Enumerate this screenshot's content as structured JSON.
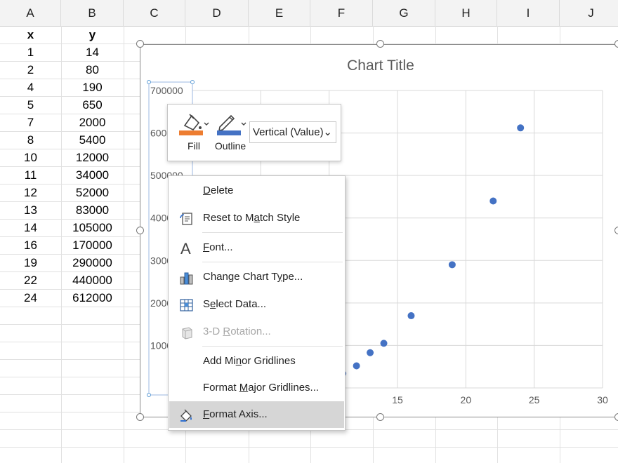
{
  "columns": [
    "A",
    "B",
    "C",
    "D",
    "E",
    "F",
    "G",
    "H",
    "I",
    "J"
  ],
  "table": {
    "headers": [
      "x",
      "y"
    ],
    "rows": [
      [
        "1",
        "14"
      ],
      [
        "2",
        "80"
      ],
      [
        "4",
        "190"
      ],
      [
        "5",
        "650"
      ],
      [
        "7",
        "2000"
      ],
      [
        "8",
        "5400"
      ],
      [
        "10",
        "12000"
      ],
      [
        "11",
        "34000"
      ],
      [
        "12",
        "52000"
      ],
      [
        "13",
        "83000"
      ],
      [
        "14",
        "105000"
      ],
      [
        "16",
        "170000"
      ],
      [
        "19",
        "290000"
      ],
      [
        "22",
        "440000"
      ],
      [
        "24",
        "612000"
      ]
    ]
  },
  "chart_data": {
    "type": "scatter",
    "title": "Chart Title",
    "x": [
      1,
      2,
      4,
      5,
      7,
      8,
      10,
      11,
      12,
      13,
      14,
      16,
      19,
      22,
      24
    ],
    "y": [
      14,
      80,
      190,
      650,
      2000,
      5400,
      12000,
      34000,
      52000,
      83000,
      105000,
      170000,
      290000,
      440000,
      612000
    ],
    "xlim": [
      0,
      30
    ],
    "ylim": [
      0,
      700000
    ],
    "x_ticks": [
      "15",
      "20",
      "25",
      "30"
    ],
    "y_ticks": [
      "700000",
      "600000",
      "500000",
      "400000",
      "300000",
      "200000",
      "100000"
    ],
    "grid": true,
    "marker_color": "#4472c4"
  },
  "mini_toolbar": {
    "fill_label": "Fill",
    "outline_label": "Outline",
    "element_selector": "Vertical (Value)",
    "fill_color": "#ed7d31",
    "outline_color": "#4472c4"
  },
  "context_menu": {
    "items": [
      {
        "pre": "",
        "acc": "D",
        "post": "elete",
        "icon": ""
      },
      {
        "pre": "Reset to M",
        "acc": "a",
        "post": "tch Style",
        "icon": "reset-style-icon"
      },
      {
        "pre": "",
        "acc": "F",
        "post": "ont...",
        "icon": "font-icon"
      },
      {
        "pre": "Change Chart T",
        "acc": "y",
        "post": "pe...",
        "icon": "chart-type-icon"
      },
      {
        "pre": "S",
        "acc": "e",
        "post": "lect Data...",
        "icon": "select-data-icon"
      },
      {
        "pre": "3-D ",
        "acc": "R",
        "post": "otation...",
        "icon": "3d-rotation-icon"
      },
      {
        "pre": "Add Mi",
        "acc": "n",
        "post": "or Gridlines",
        "icon": ""
      },
      {
        "pre": "Format ",
        "acc": "M",
        "post": "ajor Gridlines...",
        "icon": ""
      },
      {
        "pre": "",
        "acc": "F",
        "post": "ormat Axis...",
        "icon": "format-axis-icon"
      }
    ]
  }
}
